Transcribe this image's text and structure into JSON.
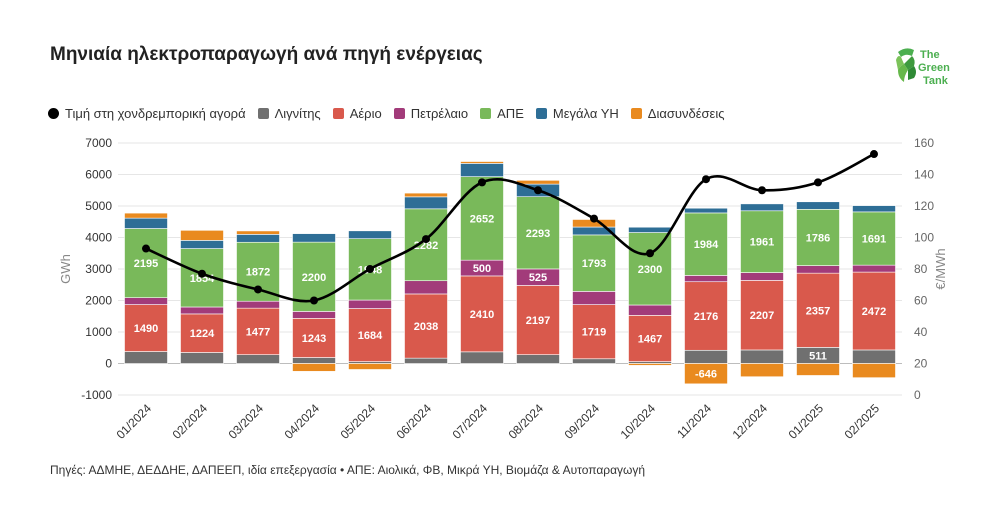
{
  "title": "Μηνιαία ηλεκτροπαραγωγή ανά πηγή ενέργειας",
  "logo": {
    "line1": "The",
    "line2": "Green",
    "line3": "Tank",
    "color": "#4caf50"
  },
  "source": "Πηγές: ΑΔΜΗΕ, ΔΕΔΔΗΕ, ΔΑΠΕΕΠ, ιδία επεξεργασία • ΑΠΕ: Αιολικά, ΦΒ, Μικρά ΥΗ, Βιομάζα & Αυτοπαραγωγή",
  "legend": [
    {
      "label": "Τιμή στη χονδρεμπορική αγορά",
      "color": "#000000",
      "kind": "line"
    },
    {
      "label": "Λιγνίτης",
      "color": "#707070",
      "kind": "bar"
    },
    {
      "label": "Αέριο",
      "color": "#d9594c",
      "kind": "bar"
    },
    {
      "label": "Πετρέλαιο",
      "color": "#a23b7a",
      "kind": "bar"
    },
    {
      "label": "ΑΠΕ",
      "color": "#79b95a",
      "kind": "bar"
    },
    {
      "label": "Μεγάλα ΥΗ",
      "color": "#2e6e96",
      "kind": "bar"
    },
    {
      "label": "Διασυνδέσεις",
      "color": "#e98a1f",
      "kind": "bar"
    }
  ],
  "chart_data": {
    "type": "bar",
    "stacked": true,
    "categories": [
      "01/2024",
      "02/2024",
      "03/2024",
      "04/2024",
      "05/2024",
      "06/2024",
      "07/2024",
      "08/2024",
      "09/2024",
      "10/2024",
      "11/2024",
      "12/2024",
      "01/2025",
      "02/2025"
    ],
    "ylabel": "GWh",
    "y2label": "€/MWh",
    "ylim": [
      -1000,
      7000
    ],
    "yticks": [
      -1000,
      0,
      1000,
      2000,
      3000,
      4000,
      5000,
      6000,
      7000
    ],
    "y2lim": [
      0,
      160
    ],
    "y2ticks": [
      0,
      20,
      40,
      60,
      80,
      100,
      120,
      140,
      160
    ],
    "grid": true,
    "legend_position": "top",
    "series": [
      {
        "name": "Λιγνίτης",
        "color": "#707070",
        "values": [
          380,
          350,
          280,
          190,
          60,
          170,
          370,
          280,
          150,
          60,
          420,
          430,
          511,
          430
        ],
        "labeled": [
          false,
          false,
          false,
          false,
          false,
          false,
          false,
          false,
          false,
          false,
          false,
          false,
          true,
          false
        ]
      },
      {
        "name": "Αέριο",
        "color": "#d9594c",
        "values": [
          1490,
          1224,
          1477,
          1243,
          1684,
          2038,
          2410,
          2197,
          1719,
          1467,
          2176,
          2207,
          2357,
          2472
        ],
        "labeled": [
          true,
          true,
          true,
          true,
          true,
          true,
          true,
          true,
          true,
          true,
          true,
          true,
          true,
          true
        ]
      },
      {
        "name": "Πετρέλαιο",
        "color": "#a23b7a",
        "values": [
          220,
          220,
          220,
          220,
          270,
          420,
          500,
          525,
          420,
          330,
          200,
          250,
          240,
          220
        ],
        "labeled": [
          false,
          false,
          false,
          false,
          false,
          false,
          true,
          true,
          false,
          false,
          false,
          false,
          false,
          false
        ]
      },
      {
        "name": "ΑΠΕ",
        "color": "#79b95a",
        "values": [
          2195,
          1854,
          1872,
          2200,
          1948,
          2282,
          2652,
          2293,
          1793,
          2300,
          1984,
          1961,
          1786,
          1691
        ],
        "labeled": [
          true,
          true,
          true,
          true,
          true,
          true,
          true,
          true,
          true,
          true,
          true,
          true,
          true,
          true
        ]
      },
      {
        "name": "Μεγάλα ΥΗ",
        "color": "#2e6e96",
        "values": [
          330,
          260,
          250,
          270,
          250,
          380,
          420,
          400,
          250,
          170,
          150,
          220,
          240,
          200
        ],
        "labeled": [
          false,
          false,
          false,
          false,
          false,
          false,
          false,
          false,
          false,
          false,
          false,
          false,
          false,
          false
        ]
      },
      {
        "name": "Διασυνδέσεις",
        "color": "#e98a1f",
        "values": [
          160,
          320,
          110,
          -250,
          -190,
          120,
          60,
          120,
          240,
          -60,
          -646,
          -420,
          -380,
          -450
        ],
        "labeled": [
          false,
          false,
          false,
          false,
          false,
          false,
          false,
          false,
          false,
          false,
          true,
          false,
          false,
          false
        ]
      }
    ],
    "price_series": {
      "name": "Τιμή στη χονδρεμπορική αγορά",
      "color": "#000000",
      "values": [
        93,
        77,
        67,
        60,
        80,
        99,
        135,
        130,
        112,
        90,
        137,
        130,
        135,
        153
      ]
    }
  }
}
